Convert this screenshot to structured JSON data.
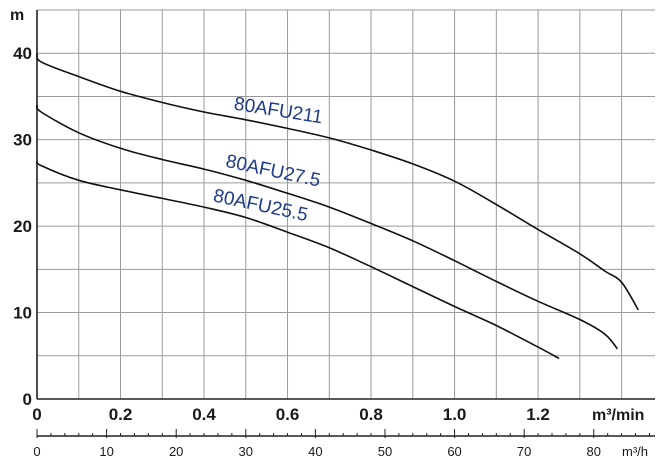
{
  "chart_data": {
    "type": "line",
    "title": "",
    "xlabel": "m³/min",
    "ylabel": "m",
    "x2label": "m³/h",
    "xlim": [
      0,
      1.48
    ],
    "ylim": [
      0,
      45
    ],
    "x_ticks": [
      {
        "value": 0,
        "label": "0"
      },
      {
        "value": 0.2,
        "label": "0.2"
      },
      {
        "value": 0.4,
        "label": "0.4"
      },
      {
        "value": 0.6,
        "label": "0.6"
      },
      {
        "value": 0.8,
        "label": "0.8"
      },
      {
        "value": 1.0,
        "label": "1.0"
      },
      {
        "value": 1.2,
        "label": "1.2"
      }
    ],
    "y_ticks": [
      {
        "value": 0,
        "label": "0"
      },
      {
        "value": 10,
        "label": "10"
      },
      {
        "value": 20,
        "label": "20"
      },
      {
        "value": 30,
        "label": "30"
      },
      {
        "value": 40,
        "label": "40"
      }
    ],
    "x2_ticks": [
      {
        "value": 0,
        "label": "0"
      },
      {
        "value": 10,
        "label": "10"
      },
      {
        "value": 20,
        "label": "20"
      },
      {
        "value": 30,
        "label": "30"
      },
      {
        "value": 40,
        "label": "40"
      },
      {
        "value": 50,
        "label": "50"
      },
      {
        "value": 60,
        "label": "60"
      },
      {
        "value": 70,
        "label": "70"
      },
      {
        "value": 80,
        "label": "80"
      }
    ],
    "grid": true,
    "series": [
      {
        "name": "80AFU211",
        "x": [
          0,
          0.01,
          0.1,
          0.2,
          0.3,
          0.4,
          0.5,
          0.6,
          0.7,
          0.8,
          0.9,
          1.0,
          1.1,
          1.2,
          1.3,
          1.36,
          1.4,
          1.44
        ],
        "y": [
          40,
          39,
          37.3,
          35.6,
          34.3,
          33.2,
          32.3,
          31.3,
          30.2,
          28.8,
          27.2,
          25.2,
          22.5,
          19.6,
          16.8,
          14.8,
          13.5,
          10.3
        ]
      },
      {
        "name": "80AFU27.5",
        "x": [
          0,
          0.01,
          0.1,
          0.2,
          0.3,
          0.4,
          0.5,
          0.6,
          0.7,
          0.8,
          0.9,
          1.0,
          1.1,
          1.2,
          1.3,
          1.36,
          1.39
        ],
        "y": [
          34,
          33.2,
          30.8,
          29.0,
          27.7,
          26.6,
          25.3,
          23.8,
          22.2,
          20.3,
          18.3,
          16.0,
          13.6,
          11.3,
          9.2,
          7.5,
          5.8
        ]
      },
      {
        "name": "80AFU25.5",
        "x": [
          0,
          0.01,
          0.1,
          0.2,
          0.3,
          0.4,
          0.5,
          0.6,
          0.7,
          0.8,
          0.9,
          1.0,
          1.1,
          1.2,
          1.25
        ],
        "y": [
          27.5,
          27,
          25.3,
          24.2,
          23.2,
          22.2,
          21.0,
          19.3,
          17.5,
          15.3,
          13.0,
          10.7,
          8.5,
          6.0,
          4.7
        ]
      }
    ]
  }
}
